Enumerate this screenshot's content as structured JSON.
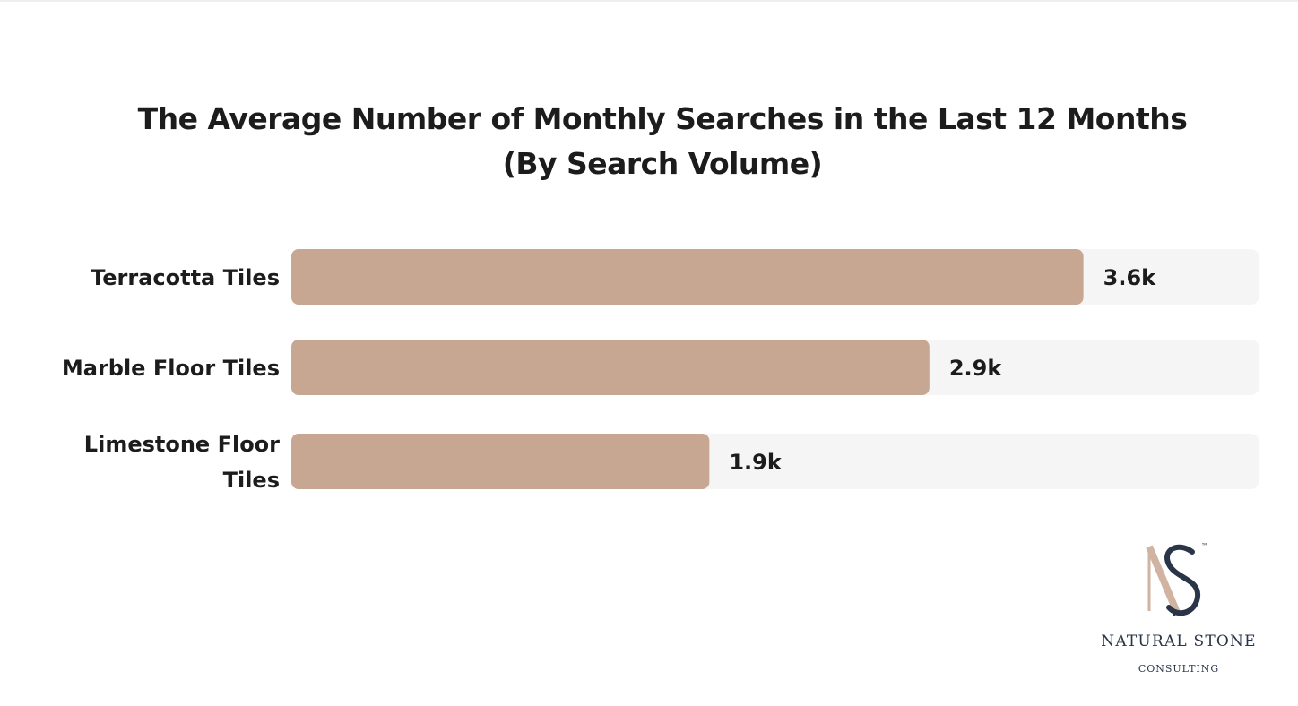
{
  "chart_data": {
    "type": "bar",
    "orientation": "horizontal",
    "title_lines": [
      "The Average Number of Monthly Searches in the Last 12 Months",
      "(By Search Volume)"
    ],
    "categories": [
      [
        "Terracotta Tiles"
      ],
      [
        "Marble Floor Tiles"
      ],
      [
        "Limestone Floor",
        "Tiles"
      ]
    ],
    "values": [
      3.6,
      2.9,
      1.9
    ],
    "value_labels": [
      "3.6k",
      "2.9k",
      "1.9k"
    ],
    "unit": "k",
    "xlim": [
      0,
      4.4
    ],
    "grid": false,
    "colors": {
      "bar": "#c8a792",
      "track": "#f5f5f5",
      "text": "#1c1c1c"
    }
  },
  "logo": {
    "monogram": "NS",
    "trademark": "™",
    "name": "NATURAL STONE",
    "sub": "CONSULTING",
    "colors": {
      "n": "#d1b3a2",
      "s": "#2a3647"
    }
  }
}
